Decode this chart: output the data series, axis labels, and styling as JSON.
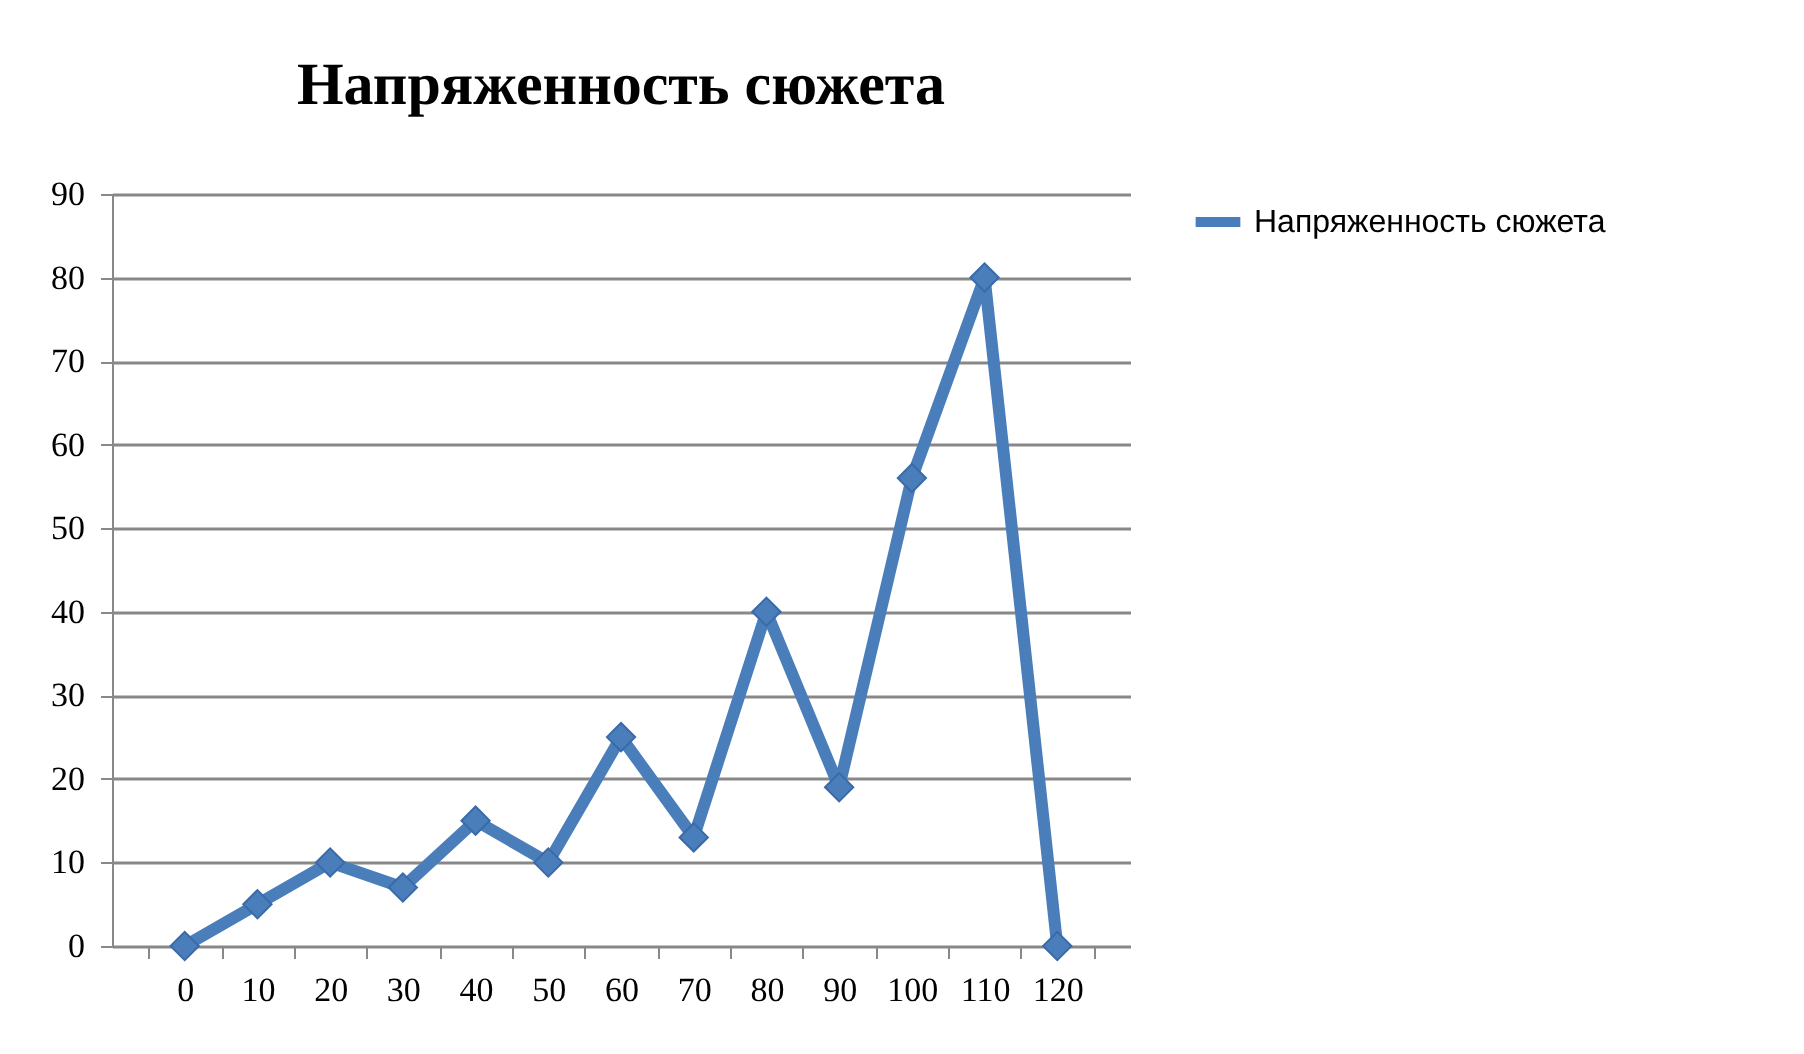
{
  "chart_data": {
    "type": "line",
    "title": "Напряженность сюжета",
    "categories": [
      "0",
      "10",
      "20",
      "30",
      "40",
      "50",
      "60",
      "70",
      "80",
      "90",
      "100",
      "110",
      "120"
    ],
    "series": [
      {
        "name": "Напряженность сюжета",
        "color": "#4a7ebb",
        "values": [
          0,
          5,
          10,
          7,
          15,
          10,
          25,
          13,
          40,
          19,
          56,
          80,
          0
        ]
      }
    ],
    "ylim": [
      0,
      90
    ],
    "yticks": [
      0,
      10,
      20,
      30,
      40,
      50,
      60,
      70,
      80,
      90
    ],
    "grid": "y",
    "legend": "right",
    "marker": "diamond",
    "line_style": "solid"
  }
}
